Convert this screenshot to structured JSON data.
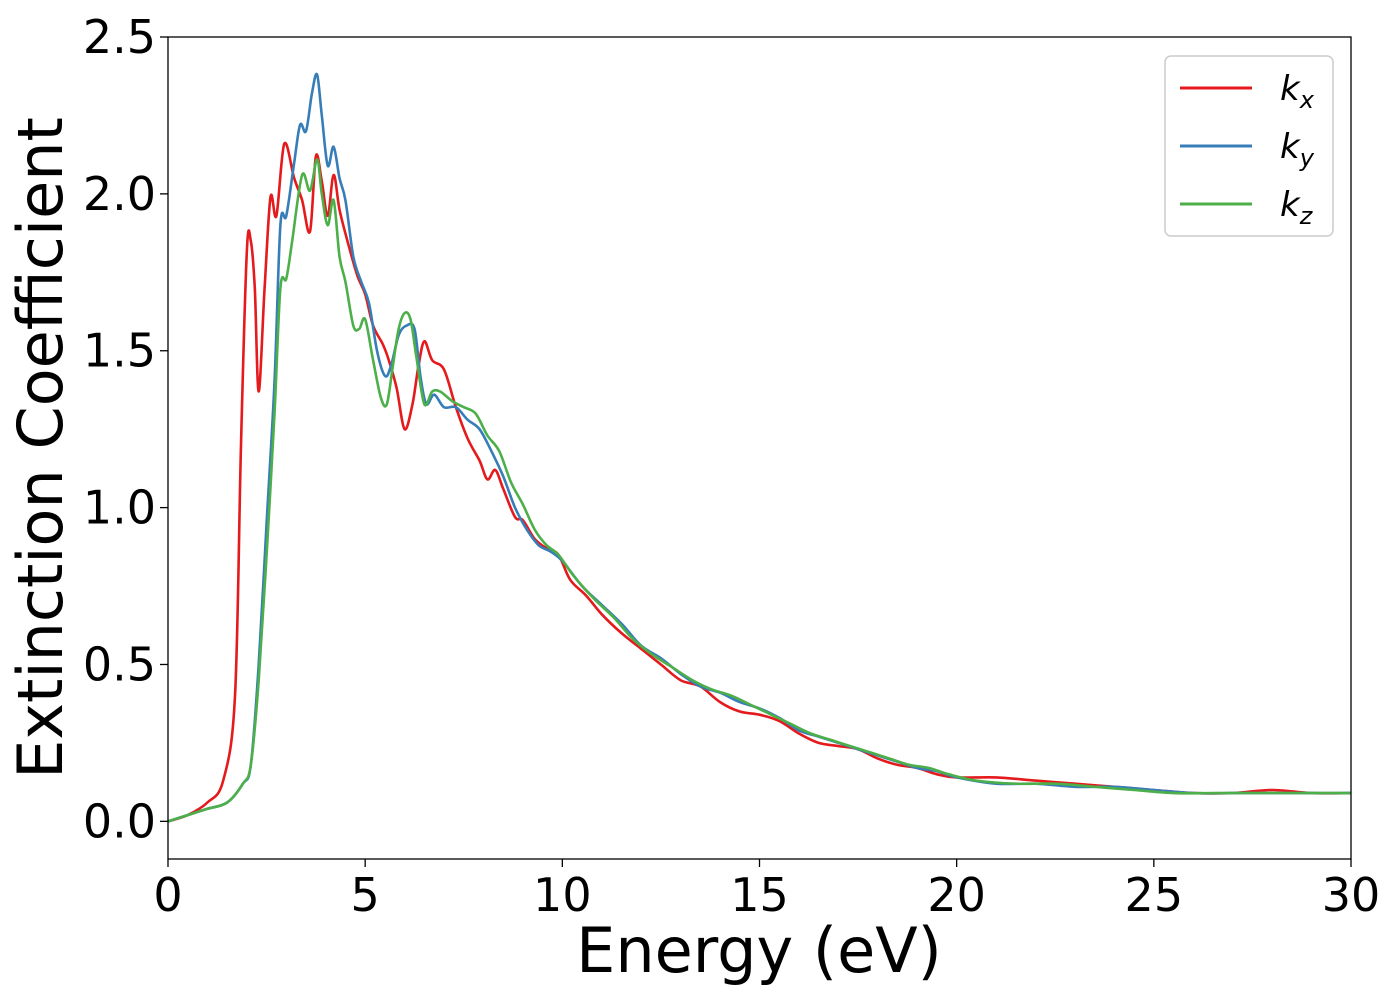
{
  "chart_data": {
    "type": "line",
    "title": "",
    "xlabel": "Energy (eV)",
    "ylabel": "Extinction Coefficient",
    "xlim": [
      0,
      30
    ],
    "ylim": [
      -0.12,
      2.5
    ],
    "xticks": [
      0,
      5,
      10,
      15,
      20,
      25,
      30
    ],
    "xtick_labels": [
      "0",
      "5",
      "10",
      "15",
      "20",
      "25",
      "30"
    ],
    "yticks": [
      0.0,
      0.5,
      1.0,
      1.5,
      2.0,
      2.5
    ],
    "ytick_labels": [
      "0.0",
      "0.5",
      "1.0",
      "1.5",
      "2.0",
      "2.5"
    ],
    "grid": false,
    "legend_position": "top-right",
    "series": [
      {
        "name": "k",
        "subscript": "x",
        "color": "#e41a1c",
        "x": [
          0,
          0.5,
          1.0,
          1.4,
          1.7,
          1.85,
          2.0,
          2.1,
          2.2,
          2.3,
          2.45,
          2.6,
          2.75,
          2.95,
          3.2,
          3.4,
          3.6,
          3.75,
          3.9,
          4.05,
          4.2,
          4.35,
          4.55,
          4.8,
          5.0,
          5.2,
          5.45,
          5.6,
          5.8,
          6.0,
          6.2,
          6.35,
          6.5,
          6.7,
          7.0,
          7.3,
          7.6,
          7.9,
          8.1,
          8.3,
          8.5,
          8.8,
          9.0,
          9.3,
          9.6,
          9.9,
          10.2,
          10.6,
          11.0,
          11.5,
          12.0,
          12.5,
          13.0,
          13.5,
          14.0,
          14.5,
          15.0,
          15.5,
          16.0,
          16.5,
          17.0,
          17.5,
          18.0,
          18.5,
          19.0,
          19.5,
          20.0,
          21.0,
          22.0,
          23.0,
          24.0,
          25.0,
          26.0,
          27.0,
          28.0,
          29.0,
          30.0
        ],
        "y": [
          0.0,
          0.02,
          0.06,
          0.13,
          0.4,
          1.2,
          1.82,
          1.85,
          1.7,
          1.37,
          1.7,
          1.99,
          1.93,
          2.16,
          2.05,
          1.98,
          1.88,
          2.12,
          2.04,
          1.93,
          2.06,
          1.95,
          1.85,
          1.74,
          1.68,
          1.58,
          1.52,
          1.47,
          1.38,
          1.25,
          1.33,
          1.45,
          1.53,
          1.47,
          1.44,
          1.32,
          1.22,
          1.15,
          1.09,
          1.12,
          1.06,
          0.97,
          0.96,
          0.9,
          0.87,
          0.85,
          0.77,
          0.72,
          0.66,
          0.6,
          0.55,
          0.5,
          0.45,
          0.43,
          0.38,
          0.35,
          0.34,
          0.32,
          0.28,
          0.25,
          0.24,
          0.23,
          0.2,
          0.18,
          0.17,
          0.15,
          0.14,
          0.14,
          0.13,
          0.12,
          0.11,
          0.1,
          0.09,
          0.09,
          0.1,
          0.09,
          0.09
        ]
      },
      {
        "name": "k",
        "subscript": "y",
        "color": "#377eb8",
        "x": [
          0,
          0.5,
          1.0,
          1.5,
          1.9,
          2.1,
          2.3,
          2.5,
          2.7,
          2.85,
          3.0,
          3.2,
          3.35,
          3.5,
          3.65,
          3.78,
          3.9,
          4.05,
          4.2,
          4.35,
          4.5,
          4.7,
          4.9,
          5.1,
          5.3,
          5.5,
          5.65,
          5.85,
          6.05,
          6.25,
          6.4,
          6.55,
          6.75,
          7.0,
          7.3,
          7.6,
          7.9,
          8.2,
          8.5,
          8.8,
          9.1,
          9.4,
          9.7,
          10.0,
          10.5,
          11.0,
          11.5,
          12.0,
          12.5,
          13.0,
          13.5,
          14.0,
          14.5,
          15.0,
          15.5,
          16.0,
          16.5,
          17.0,
          17.5,
          18.0,
          18.5,
          19.0,
          19.5,
          20.0,
          21.0,
          22.0,
          23.0,
          24.0,
          25.0,
          26.0,
          27.0,
          28.0,
          29.0,
          30.0
        ],
        "y": [
          0.0,
          0.02,
          0.04,
          0.06,
          0.12,
          0.18,
          0.5,
          0.95,
          1.4,
          1.9,
          1.93,
          2.1,
          2.22,
          2.2,
          2.32,
          2.38,
          2.25,
          2.09,
          2.15,
          2.05,
          1.98,
          1.8,
          1.72,
          1.65,
          1.5,
          1.42,
          1.45,
          1.55,
          1.58,
          1.57,
          1.42,
          1.33,
          1.36,
          1.32,
          1.32,
          1.28,
          1.25,
          1.18,
          1.1,
          1.0,
          0.93,
          0.88,
          0.86,
          0.83,
          0.75,
          0.69,
          0.63,
          0.56,
          0.52,
          0.47,
          0.43,
          0.41,
          0.38,
          0.36,
          0.33,
          0.29,
          0.27,
          0.25,
          0.23,
          0.21,
          0.19,
          0.17,
          0.16,
          0.14,
          0.12,
          0.12,
          0.11,
          0.11,
          0.1,
          0.09,
          0.09,
          0.09,
          0.09,
          0.09
        ]
      },
      {
        "name": "k",
        "subscript": "z",
        "color": "#4daf4a",
        "x": [
          0,
          0.5,
          1.0,
          1.5,
          1.9,
          2.1,
          2.3,
          2.5,
          2.7,
          2.85,
          3.0,
          3.15,
          3.4,
          3.6,
          3.78,
          3.9,
          4.05,
          4.2,
          4.35,
          4.5,
          4.7,
          4.85,
          5.0,
          5.2,
          5.4,
          5.55,
          5.7,
          5.85,
          6.0,
          6.15,
          6.3,
          6.5,
          6.7,
          6.9,
          7.2,
          7.5,
          7.8,
          8.1,
          8.4,
          8.7,
          9.0,
          9.3,
          9.6,
          9.9,
          10.3,
          10.8,
          11.3,
          11.8,
          12.3,
          12.8,
          13.3,
          13.8,
          14.3,
          14.8,
          15.3,
          15.8,
          16.3,
          16.8,
          17.3,
          17.8,
          18.3,
          18.8,
          19.3,
          19.8,
          20.5,
          21.5,
          22.5,
          23.5,
          24.5,
          25.5,
          26.5,
          27.5,
          28.5,
          29.5,
          30.0
        ],
        "y": [
          0.0,
          0.02,
          0.04,
          0.06,
          0.12,
          0.18,
          0.45,
          0.85,
          1.3,
          1.7,
          1.73,
          1.85,
          2.06,
          2.01,
          2.11,
          2.0,
          1.9,
          1.98,
          1.8,
          1.72,
          1.58,
          1.57,
          1.6,
          1.47,
          1.35,
          1.33,
          1.45,
          1.57,
          1.62,
          1.6,
          1.48,
          1.33,
          1.37,
          1.37,
          1.34,
          1.32,
          1.3,
          1.23,
          1.18,
          1.08,
          1.01,
          0.93,
          0.88,
          0.85,
          0.78,
          0.71,
          0.65,
          0.58,
          0.53,
          0.49,
          0.45,
          0.42,
          0.4,
          0.37,
          0.34,
          0.31,
          0.28,
          0.26,
          0.24,
          0.22,
          0.2,
          0.18,
          0.17,
          0.15,
          0.13,
          0.12,
          0.12,
          0.11,
          0.1,
          0.09,
          0.09,
          0.09,
          0.09,
          0.09,
          0.09
        ]
      }
    ]
  }
}
